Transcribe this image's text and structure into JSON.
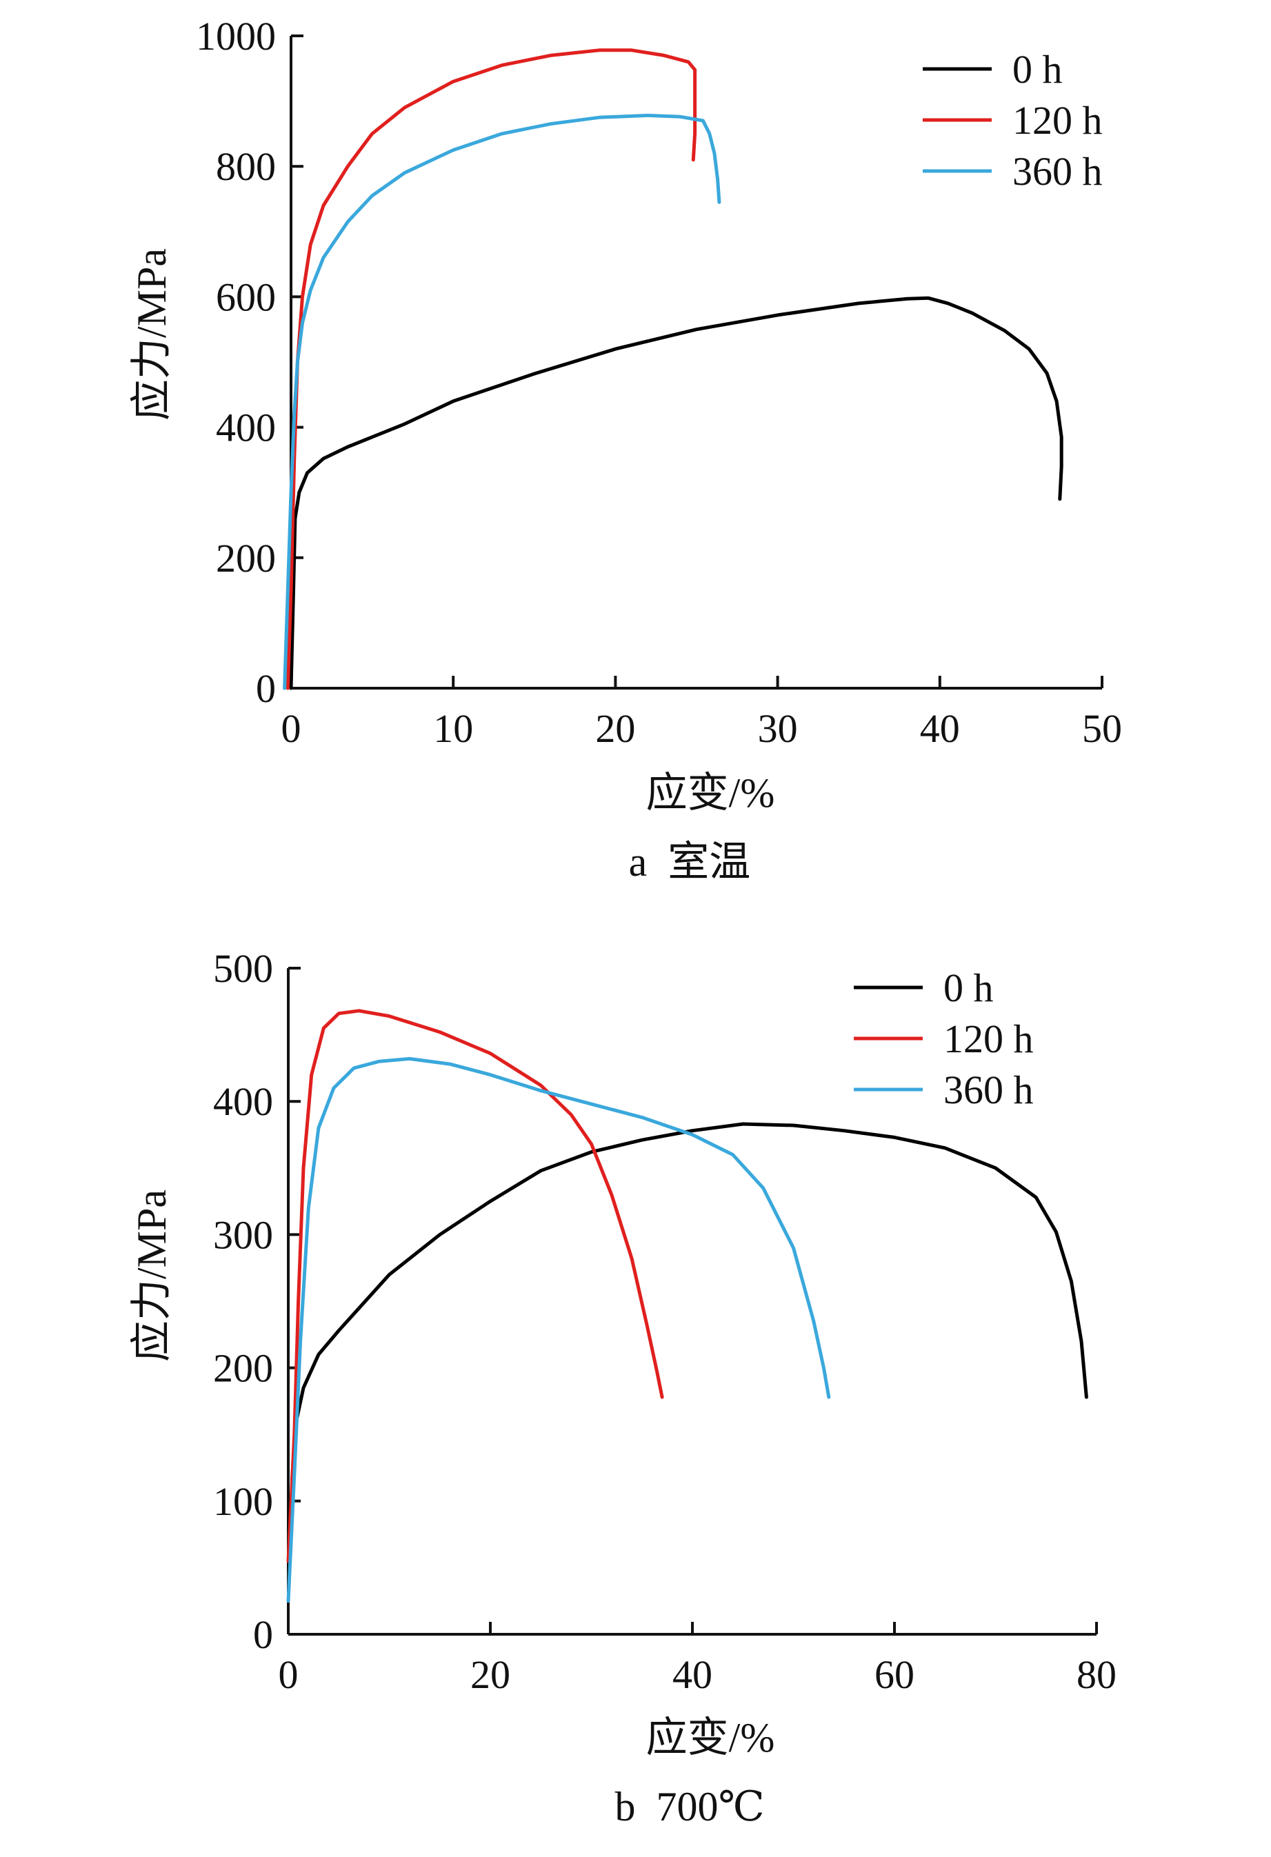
{
  "chart_data": [
    {
      "type": "line",
      "xlabel": "应变/%",
      "ylabel": "应力/MPa",
      "caption": "a  室温",
      "xlim": [
        0,
        50
      ],
      "ylim": [
        0,
        1000
      ],
      "xticks": [
        0,
        10,
        20,
        30,
        40,
        50
      ],
      "yticks": [
        0,
        200,
        400,
        600,
        800,
        1000
      ],
      "legend_position": "top-right",
      "series": [
        {
          "name": "0 h",
          "color": "#000000",
          "points": [
            [
              0,
              0
            ],
            [
              0.15,
              150
            ],
            [
              0.25,
              260
            ],
            [
              0.5,
              300
            ],
            [
              1,
              330
            ],
            [
              2,
              352
            ],
            [
              3.5,
              370
            ],
            [
              5,
              385
            ],
            [
              7,
              405
            ],
            [
              10,
              440
            ],
            [
              15,
              482
            ],
            [
              20,
              520
            ],
            [
              25,
              550
            ],
            [
              30,
              572
            ],
            [
              35,
              590
            ],
            [
              38,
              597
            ],
            [
              39.3,
              598
            ],
            [
              40.5,
              590
            ],
            [
              42,
              575
            ],
            [
              44,
              548
            ],
            [
              45.5,
              520
            ],
            [
              46.6,
              483
            ],
            [
              47.2,
              440
            ],
            [
              47.5,
              385
            ],
            [
              47.5,
              340
            ],
            [
              47.4,
              290
            ]
          ]
        },
        {
          "name": "120 h",
          "color": "#e0201e",
          "points": [
            [
              -0.2,
              0
            ],
            [
              0,
              150
            ],
            [
              0.2,
              350
            ],
            [
              0.4,
              500
            ],
            [
              0.7,
              600
            ],
            [
              1.2,
              680
            ],
            [
              2,
              740
            ],
            [
              3.5,
              800
            ],
            [
              5,
              850
            ],
            [
              7,
              890
            ],
            [
              10,
              930
            ],
            [
              13,
              955
            ],
            [
              16,
              970
            ],
            [
              19,
              978
            ],
            [
              21,
              978
            ],
            [
              23,
              970
            ],
            [
              24.5,
              960
            ],
            [
              24.9,
              948
            ],
            [
              24.9,
              900
            ],
            [
              24.9,
              850
            ],
            [
              24.8,
              810
            ]
          ]
        },
        {
          "name": "360 h",
          "color": "#3aa8dc",
          "points": [
            [
              -0.4,
              0
            ],
            [
              -0.2,
              150
            ],
            [
              0,
              300
            ],
            [
              0.2,
              420
            ],
            [
              0.4,
              500
            ],
            [
              0.7,
              560
            ],
            [
              1.2,
              610
            ],
            [
              2,
              660
            ],
            [
              3.5,
              715
            ],
            [
              5,
              755
            ],
            [
              7,
              790
            ],
            [
              10,
              825
            ],
            [
              13,
              850
            ],
            [
              16,
              865
            ],
            [
              19,
              875
            ],
            [
              22,
              878
            ],
            [
              24,
              876
            ],
            [
              25.4,
              870
            ],
            [
              25.8,
              850
            ],
            [
              26.1,
              820
            ],
            [
              26.3,
              780
            ],
            [
              26.4,
              745
            ]
          ]
        }
      ]
    },
    {
      "type": "line",
      "xlabel": "应变/%",
      "ylabel": "应力/MPa",
      "caption": "b  700℃",
      "xlim": [
        0,
        80
      ],
      "ylim": [
        0,
        500
      ],
      "xticks": [
        0,
        20,
        40,
        60,
        80
      ],
      "yticks": [
        0,
        100,
        200,
        300,
        400,
        500
      ],
      "legend_position": "top-right",
      "series": [
        {
          "name": "0 h",
          "color": "#000000",
          "points": [
            [
              0.1,
              45
            ],
            [
              0.4,
              120
            ],
            [
              0.8,
              160
            ],
            [
              1.5,
              185
            ],
            [
              3,
              210
            ],
            [
              5,
              228
            ],
            [
              10,
              270
            ],
            [
              15,
              300
            ],
            [
              20,
              325
            ],
            [
              25,
              348
            ],
            [
              30,
              362
            ],
            [
              35,
              371
            ],
            [
              40,
              378
            ],
            [
              45,
              383
            ],
            [
              50,
              382
            ],
            [
              55,
              378
            ],
            [
              60,
              373
            ],
            [
              65,
              365
            ],
            [
              70,
              350
            ],
            [
              74,
              328
            ],
            [
              76,
              302
            ],
            [
              77.5,
              265
            ],
            [
              78.5,
              220
            ],
            [
              79,
              178
            ]
          ]
        },
        {
          "name": "120 h",
          "color": "#e0201e",
          "points": [
            [
              0,
              55
            ],
            [
              0.6,
              150
            ],
            [
              1,
              250
            ],
            [
              1.5,
              350
            ],
            [
              2.3,
              420
            ],
            [
              3.5,
              455
            ],
            [
              5,
              466
            ],
            [
              7,
              468
            ],
            [
              10,
              464
            ],
            [
              15,
              452
            ],
            [
              20,
              436
            ],
            [
              25,
              412
            ],
            [
              28,
              390
            ],
            [
              30,
              368
            ],
            [
              32,
              330
            ],
            [
              34,
              282
            ],
            [
              35.5,
              232
            ],
            [
              36.5,
              197
            ],
            [
              37,
              178
            ]
          ]
        },
        {
          "name": "360 h",
          "color": "#3aa8dc",
          "points": [
            [
              0,
              25
            ],
            [
              0.6,
              120
            ],
            [
              1.2,
              220
            ],
            [
              2,
              320
            ],
            [
              3,
              380
            ],
            [
              4.5,
              410
            ],
            [
              6.5,
              425
            ],
            [
              9,
              430
            ],
            [
              12,
              432
            ],
            [
              16,
              428
            ],
            [
              20,
              420
            ],
            [
              25,
              408
            ],
            [
              30,
              398
            ],
            [
              35,
              388
            ],
            [
              40,
              375
            ],
            [
              44,
              360
            ],
            [
              47,
              335
            ],
            [
              50,
              290
            ],
            [
              52,
              235
            ],
            [
              53,
              200
            ],
            [
              53.5,
              178
            ]
          ]
        }
      ]
    }
  ]
}
